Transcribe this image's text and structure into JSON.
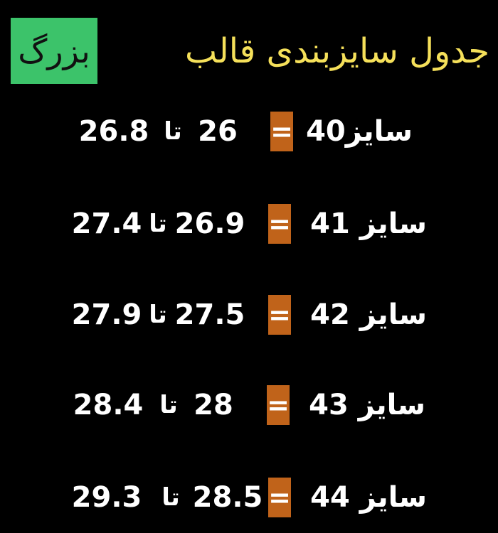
{
  "title": {
    "text": "جدول سایزبندی قالب",
    "highlight": "بزرگ"
  },
  "rows": [
    {
      "size": "سایز40",
      "equals": "=",
      "from": "26",
      "between": "تا",
      "to": "26.8"
    },
    {
      "size": "سایز 41",
      "equals": "=",
      "from": "26.9",
      "between": "تا",
      "to": "27.4"
    },
    {
      "size": "سایز 42",
      "equals": "=",
      "from": "27.5",
      "between": "تا",
      "to": "27.9"
    },
    {
      "size": "سایز 43",
      "equals": "=",
      "from": "28",
      "between": "تا",
      "to": "28.4"
    },
    {
      "size": "سایز 44",
      "equals": "=",
      "from": "28.5",
      "between": "تا",
      "to": "29.3"
    }
  ]
}
